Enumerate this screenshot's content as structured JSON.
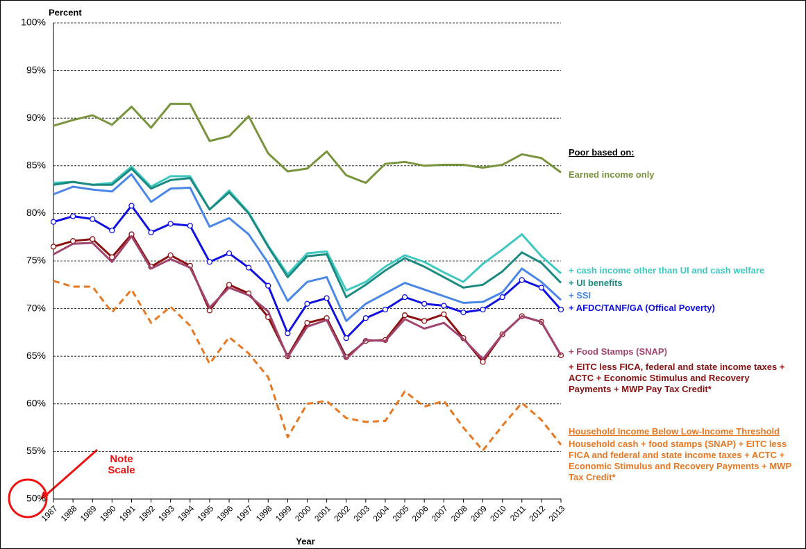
{
  "chart_data": {
    "type": "line",
    "y_label": "Percent",
    "x_label": "Year",
    "legend_title": "Poor based on:",
    "threshold_heading": "Household Income Below Low-Income Threshold",
    "note": "Note Scale",
    "categories": [
      "1987",
      "1988",
      "1989",
      "1990",
      "1991",
      "1992",
      "1993",
      "1994",
      "1995",
      "1996",
      "1997",
      "1998",
      "1999",
      "2000",
      "2001",
      "2002",
      "2003",
      "2004",
      "2005",
      "2006",
      "2007",
      "2008",
      "2009",
      "2010",
      "2011",
      "2012",
      "2013"
    ],
    "ylim": [
      50,
      100
    ],
    "yticks": [
      {
        "value": 50,
        "label": "50%"
      },
      {
        "value": 55,
        "label": "55%"
      },
      {
        "value": 60,
        "label": "60%"
      },
      {
        "value": 65,
        "label": "65%"
      },
      {
        "value": 70,
        "label": "70%"
      },
      {
        "value": 75,
        "label": "75%"
      },
      {
        "value": 80,
        "label": "80%"
      },
      {
        "value": 85,
        "label": "85%"
      },
      {
        "value": 90,
        "label": "90%"
      },
      {
        "value": 95,
        "label": "95%"
      },
      {
        "value": 100,
        "label": "100%"
      }
    ],
    "grid": true,
    "series": [
      {
        "name": "Household cash + food stamps (SNAP) + EITC less FICA and federal and state income taxes + ACTC + Economic Stimulus and Recovery Payments + MWP Tax Credit*",
        "color": "#e87722",
        "dashed": true,
        "values": [
          72.9,
          72.3,
          72.3,
          69.6,
          72.0,
          68.5,
          70.2,
          68.2,
          64.2,
          67.0,
          65.3,
          62.8,
          56.5,
          60.0,
          60.3,
          58.5,
          58.1,
          58.2,
          61.3,
          59.7,
          60.3,
          57.5,
          55.1,
          57.7,
          60.1,
          58.3,
          55.7
        ]
      },
      {
        "name": "Earned income only",
        "color": "#77933c",
        "values": [
          89.2,
          89.8,
          90.3,
          89.3,
          91.2,
          89.0,
          91.5,
          91.5,
          87.6,
          88.1,
          90.2,
          86.3,
          84.4,
          84.7,
          86.5,
          84.0,
          83.2,
          85.2,
          85.4,
          85.0,
          85.1,
          85.1,
          84.8,
          85.1,
          86.2,
          85.8,
          84.3
        ]
      },
      {
        "name": "+ cash income other than UI and cash welfare",
        "color": "#3ec8c0",
        "values": [
          83.2,
          83.3,
          83.0,
          83.2,
          84.9,
          82.8,
          83.9,
          83.9,
          80.4,
          82.4,
          80.1,
          76.6,
          73.6,
          75.8,
          76.0,
          71.9,
          72.8,
          74.4,
          75.6,
          74.9,
          73.8,
          72.8,
          74.7,
          76.2,
          77.8,
          75.5,
          73.7
        ]
      },
      {
        "name": "+ UI benefits",
        "color": "#1b8a80",
        "values": [
          83.0,
          83.3,
          83.0,
          83.0,
          84.7,
          82.6,
          83.5,
          83.7,
          80.4,
          82.2,
          80.0,
          76.5,
          73.3,
          75.5,
          75.7,
          71.2,
          72.5,
          74.0,
          75.3,
          74.4,
          73.3,
          72.2,
          72.5,
          73.9,
          75.9,
          74.8,
          72.7
        ]
      },
      {
        "name": "+ SSI",
        "color": "#4a86e8",
        "values": [
          82.0,
          82.8,
          82.5,
          82.3,
          84.1,
          81.2,
          82.6,
          82.7,
          78.6,
          79.5,
          77.8,
          74.8,
          70.8,
          72.8,
          73.3,
          68.7,
          70.5,
          71.6,
          72.7,
          72.0,
          71.3,
          70.6,
          70.7,
          71.7,
          74.2,
          72.8,
          70.9
        ]
      },
      {
        "name": "+ AFDC/TANF/GA (Offical Poverty)",
        "color": "#1010e0",
        "markers": true,
        "values": [
          79.1,
          79.7,
          79.4,
          78.2,
          80.8,
          78.0,
          78.9,
          78.7,
          74.9,
          75.8,
          74.3,
          72.4,
          67.4,
          70.5,
          71.1,
          66.9,
          69.0,
          69.9,
          71.2,
          70.5,
          70.3,
          69.6,
          69.9,
          71.2,
          73.0,
          72.2,
          69.9
        ]
      },
      {
        "name": "+ EITC less FICA, federal and state income taxes + ACTC + Economic Stimulus and Recovery Payments + MWP Pay Tax Credit*",
        "color": "#8b1010",
        "markers": true,
        "values": [
          76.5,
          77.1,
          77.3,
          75.4,
          77.8,
          74.4,
          75.6,
          74.5,
          69.8,
          72.5,
          71.6,
          69.1,
          65.0,
          68.5,
          69.0,
          64.9,
          66.6,
          66.7,
          69.3,
          68.7,
          69.4,
          66.9,
          64.4,
          67.3,
          69.2,
          68.6,
          65.1
        ]
      },
      {
        "name": "+ Food Stamps (SNAP)",
        "color": "#a0456f",
        "values": [
          75.7,
          76.8,
          76.9,
          74.9,
          77.6,
          74.2,
          75.2,
          74.3,
          70.1,
          72.2,
          71.4,
          69.7,
          64.9,
          68.1,
          68.8,
          64.7,
          66.7,
          66.6,
          68.9,
          67.9,
          68.5,
          66.8,
          64.7,
          67.3,
          69.2,
          68.6,
          65.1
        ]
      }
    ]
  }
}
